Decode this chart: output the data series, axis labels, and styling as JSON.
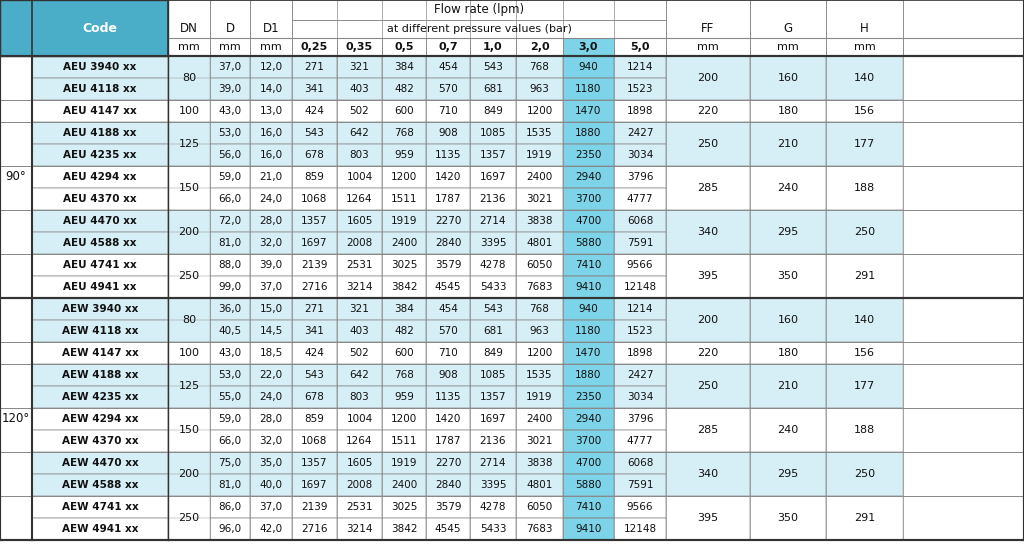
{
  "header_bg": "#4aaec9",
  "highlight_col_bg": "#7dd4e8",
  "white": "#ffffff",
  "light_blue": "#d6eef5",
  "border_color": "#888888",
  "border_dark": "#333333",
  "text_color": "#222222",
  "angle_bg": "#ffffff",
  "section_90": {
    "angle": "90°",
    "groups": [
      {
        "dn": "80",
        "ff": "200",
        "g": "160",
        "h": "140",
        "rows": [
          {
            "code": "AEU 3940 xx",
            "d": "37,0",
            "d1": "12,0",
            "v025": "271",
            "v035": "321",
            "v05": "384",
            "v07": "454",
            "v10": "543",
            "v20": "768",
            "v30": "940",
            "v50": "1214"
          },
          {
            "code": "AEU 4118 xx",
            "d": "39,0",
            "d1": "14,0",
            "v025": "341",
            "v035": "403",
            "v05": "482",
            "v07": "570",
            "v10": "681",
            "v20": "963",
            "v30": "1180",
            "v50": "1523"
          }
        ]
      },
      {
        "dn": "100",
        "ff": "220",
        "g": "180",
        "h": "156",
        "rows": [
          {
            "code": "AEU 4147 xx",
            "d": "43,0",
            "d1": "13,0",
            "v025": "424",
            "v035": "502",
            "v05": "600",
            "v07": "710",
            "v10": "849",
            "v20": "1200",
            "v30": "1470",
            "v50": "1898"
          }
        ]
      },
      {
        "dn": "125",
        "ff": "250",
        "g": "210",
        "h": "177",
        "rows": [
          {
            "code": "AEU 4188 xx",
            "d": "53,0",
            "d1": "16,0",
            "v025": "543",
            "v035": "642",
            "v05": "768",
            "v07": "908",
            "v10": "1085",
            "v20": "1535",
            "v30": "1880",
            "v50": "2427"
          },
          {
            "code": "AEU 4235 xx",
            "d": "56,0",
            "d1": "16,0",
            "v025": "678",
            "v035": "803",
            "v05": "959",
            "v07": "1135",
            "v10": "1357",
            "v20": "1919",
            "v30": "2350",
            "v50": "3034"
          }
        ]
      },
      {
        "dn": "150",
        "ff": "285",
        "g": "240",
        "h": "188",
        "rows": [
          {
            "code": "AEU 4294 xx",
            "d": "59,0",
            "d1": "21,0",
            "v025": "859",
            "v035": "1004",
            "v05": "1200",
            "v07": "1420",
            "v10": "1697",
            "v20": "2400",
            "v30": "2940",
            "v50": "3796"
          },
          {
            "code": "AEU 4370 xx",
            "d": "66,0",
            "d1": "24,0",
            "v025": "1068",
            "v035": "1264",
            "v05": "1511",
            "v07": "1787",
            "v10": "2136",
            "v20": "3021",
            "v30": "3700",
            "v50": "4777"
          }
        ]
      },
      {
        "dn": "200",
        "ff": "340",
        "g": "295",
        "h": "250",
        "rows": [
          {
            "code": "AEU 4470 xx",
            "d": "72,0",
            "d1": "28,0",
            "v025": "1357",
            "v035": "1605",
            "v05": "1919",
            "v07": "2270",
            "v10": "2714",
            "v20": "3838",
            "v30": "4700",
            "v50": "6068"
          },
          {
            "code": "AEU 4588 xx",
            "d": "81,0",
            "d1": "32,0",
            "v025": "1697",
            "v035": "2008",
            "v05": "2400",
            "v07": "2840",
            "v10": "3395",
            "v20": "4801",
            "v30": "5880",
            "v50": "7591"
          }
        ]
      },
      {
        "dn": "250",
        "ff": "395",
        "g": "350",
        "h": "291",
        "rows": [
          {
            "code": "AEU 4741 xx",
            "d": "88,0",
            "d1": "39,0",
            "v025": "2139",
            "v035": "2531",
            "v05": "3025",
            "v07": "3579",
            "v10": "4278",
            "v20": "6050",
            "v30": "7410",
            "v50": "9566"
          },
          {
            "code": "AEU 4941 xx",
            "d": "99,0",
            "d1": "37,0",
            "v025": "2716",
            "v035": "3214",
            "v05": "3842",
            "v07": "4545",
            "v10": "5433",
            "v20": "7683",
            "v30": "9410",
            "v50": "12148"
          }
        ]
      }
    ]
  },
  "section_120": {
    "angle": "120°",
    "groups": [
      {
        "dn": "80",
        "ff": "200",
        "g": "160",
        "h": "140",
        "rows": [
          {
            "code": "AEW 3940 xx",
            "d": "36,0",
            "d1": "15,0",
            "v025": "271",
            "v035": "321",
            "v05": "384",
            "v07": "454",
            "v10": "543",
            "v20": "768",
            "v30": "940",
            "v50": "1214"
          },
          {
            "code": "AEW 4118 xx",
            "d": "40,5",
            "d1": "14,5",
            "v025": "341",
            "v035": "403",
            "v05": "482",
            "v07": "570",
            "v10": "681",
            "v20": "963",
            "v30": "1180",
            "v50": "1523"
          }
        ]
      },
      {
        "dn": "100",
        "ff": "220",
        "g": "180",
        "h": "156",
        "rows": [
          {
            "code": "AEW 4147 xx",
            "d": "43,0",
            "d1": "18,5",
            "v025": "424",
            "v035": "502",
            "v05": "600",
            "v07": "710",
            "v10": "849",
            "v20": "1200",
            "v30": "1470",
            "v50": "1898"
          }
        ]
      },
      {
        "dn": "125",
        "ff": "250",
        "g": "210",
        "h": "177",
        "rows": [
          {
            "code": "AEW 4188 xx",
            "d": "53,0",
            "d1": "22,0",
            "v025": "543",
            "v035": "642",
            "v05": "768",
            "v07": "908",
            "v10": "1085",
            "v20": "1535",
            "v30": "1880",
            "v50": "2427"
          },
          {
            "code": "AEW 4235 xx",
            "d": "55,0",
            "d1": "24,0",
            "v025": "678",
            "v035": "803",
            "v05": "959",
            "v07": "1135",
            "v10": "1357",
            "v20": "1919",
            "v30": "2350",
            "v50": "3034"
          }
        ]
      },
      {
        "dn": "150",
        "ff": "285",
        "g": "240",
        "h": "188",
        "rows": [
          {
            "code": "AEW 4294 xx",
            "d": "59,0",
            "d1": "28,0",
            "v025": "859",
            "v035": "1004",
            "v05": "1200",
            "v07": "1420",
            "v10": "1697",
            "v20": "2400",
            "v30": "2940",
            "v50": "3796"
          },
          {
            "code": "AEW 4370 xx",
            "d": "66,0",
            "d1": "32,0",
            "v025": "1068",
            "v035": "1264",
            "v05": "1511",
            "v07": "1787",
            "v10": "2136",
            "v20": "3021",
            "v30": "3700",
            "v50": "4777"
          }
        ]
      },
      {
        "dn": "200",
        "ff": "340",
        "g": "295",
        "h": "250",
        "rows": [
          {
            "code": "AEW 4470 xx",
            "d": "75,0",
            "d1": "35,0",
            "v025": "1357",
            "v035": "1605",
            "v05": "1919",
            "v07": "2270",
            "v10": "2714",
            "v20": "3838",
            "v30": "4700",
            "v50": "6068"
          },
          {
            "code": "AEW 4588 xx",
            "d": "81,0",
            "d1": "40,0",
            "v025": "1697",
            "v035": "2008",
            "v05": "2400",
            "v07": "2840",
            "v10": "3395",
            "v20": "4801",
            "v30": "5880",
            "v50": "7591"
          }
        ]
      },
      {
        "dn": "250",
        "ff": "395",
        "g": "350",
        "h": "291",
        "rows": [
          {
            "code": "AEW 4741 xx",
            "d": "86,0",
            "d1": "37,0",
            "v025": "2139",
            "v035": "2531",
            "v05": "3025",
            "v07": "3579",
            "v10": "4278",
            "v20": "6050",
            "v30": "7410",
            "v50": "9566"
          },
          {
            "code": "AEW 4941 xx",
            "d": "96,0",
            "d1": "42,0",
            "v025": "2716",
            "v035": "3214",
            "v05": "3842",
            "v07": "4545",
            "v10": "5433",
            "v20": "7683",
            "v30": "9410",
            "v50": "12148"
          }
        ]
      }
    ]
  }
}
